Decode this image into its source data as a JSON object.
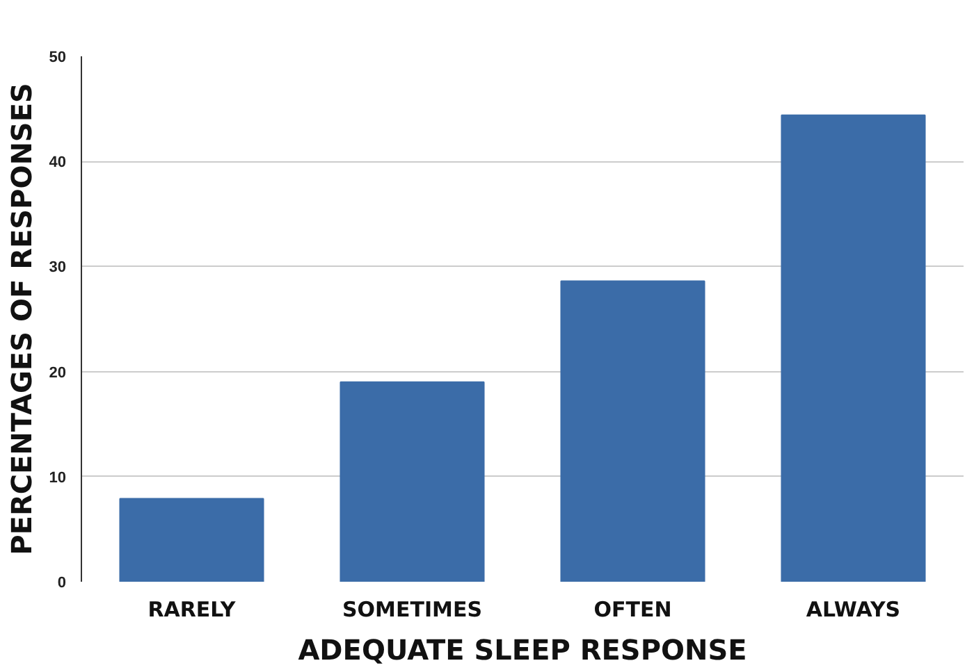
{
  "chart_data": {
    "type": "bar",
    "xlabel": "ADEQUATE SLEEP RESPONSE",
    "ylabel": "PERCENTAGES OF RESPONSES",
    "categories": [
      "RARELY",
      "SOMETIMES",
      "OFTEN",
      "ALWAYS"
    ],
    "values": [
      7.9,
      19.0,
      28.6,
      44.4
    ],
    "color": "#3b6ca8",
    "ylim": [
      0,
      50
    ],
    "yticks": [
      0,
      10,
      20,
      30,
      40,
      50
    ],
    "grid": "y"
  }
}
